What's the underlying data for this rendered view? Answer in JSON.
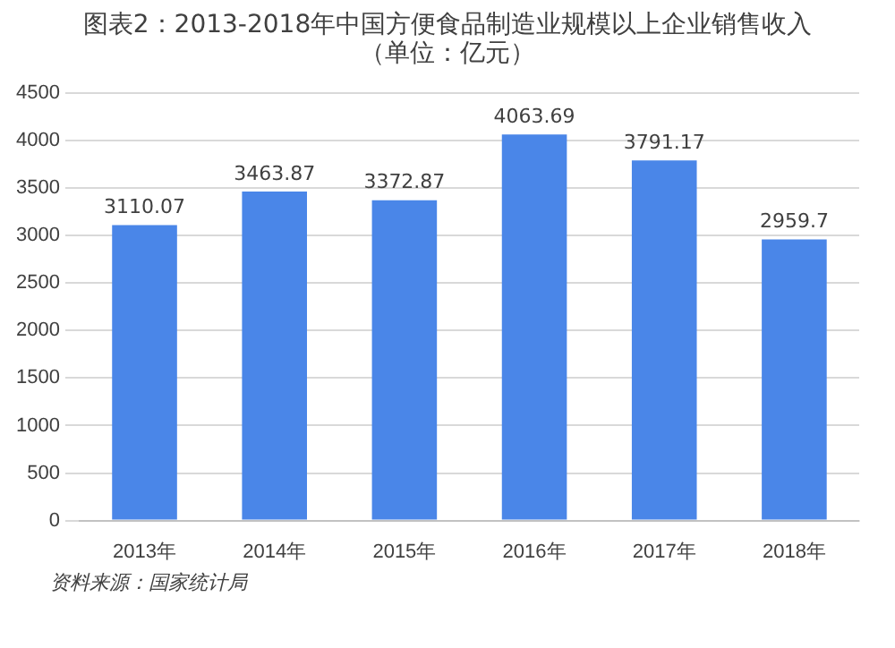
{
  "chart_data": {
    "type": "bar",
    "title": "图表2：2013-2018年中国方便食品制造业规模以上企业销售收入",
    "subtitle": "（单位：亿元）",
    "categories": [
      "2013年",
      "2014年",
      "2015年",
      "2016年",
      "2017年",
      "2018年"
    ],
    "values": [
      3110.07,
      3463.87,
      3372.87,
      4063.69,
      3791.17,
      2959.7
    ],
    "color": "#4a86e8",
    "ylim": [
      0,
      4500
    ],
    "yticks": [
      0,
      500,
      1000,
      1500,
      2000,
      2500,
      3000,
      3500,
      4000,
      4500
    ],
    "grid": "y",
    "data_labels": true,
    "legend": false,
    "annotations": [
      "资料来源：国家统计局"
    ]
  }
}
